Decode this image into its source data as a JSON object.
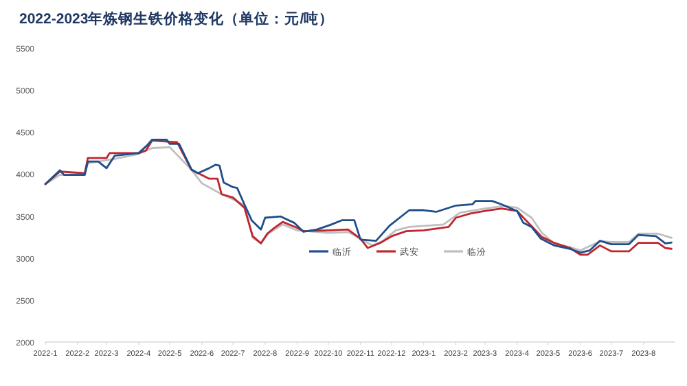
{
  "chart_data": {
    "type": "line",
    "title": "2022-2023年炼钢生铁价格变化（单位：元/吨）",
    "xlim": [
      "2022-01-01",
      "2023-08-31"
    ],
    "xticks": [
      {
        "value": "2022-01-01",
        "label": "2022-1"
      },
      {
        "value": "2022-02-01",
        "label": "2022-2"
      },
      {
        "value": "2022-03-01",
        "label": "2022-3"
      },
      {
        "value": "2022-04-01",
        "label": "2022-4"
      },
      {
        "value": "2022-05-01",
        "label": "2022-5"
      },
      {
        "value": "2022-06-01",
        "label": "2022-6"
      },
      {
        "value": "2022-07-01",
        "label": "2022-7"
      },
      {
        "value": "2022-08-01",
        "label": "2022-8"
      },
      {
        "value": "2022-09-01",
        "label": "2022-9"
      },
      {
        "value": "2022-10-01",
        "label": "2022-10"
      },
      {
        "value": "2022-11-01",
        "label": "2022-11"
      },
      {
        "value": "2022-12-01",
        "label": "2022-12"
      },
      {
        "value": "2023-01-01",
        "label": "2023-1"
      },
      {
        "value": "2023-02-01",
        "label": "2023-2"
      },
      {
        "value": "2023-03-01",
        "label": "2023-3"
      },
      {
        "value": "2023-04-01",
        "label": "2023-4"
      },
      {
        "value": "2023-05-01",
        "label": "2023-5"
      },
      {
        "value": "2023-06-01",
        "label": "2023-6"
      },
      {
        "value": "2023-07-01",
        "label": "2023-7"
      },
      {
        "value": "2023-08-01",
        "label": "2023-8"
      }
    ],
    "ylim": [
      2000,
      5500
    ],
    "yticks": [
      2000,
      2500,
      3000,
      3500,
      4000,
      4500,
      5000,
      5500
    ],
    "legend": "bottom",
    "grid": false,
    "marker": "none",
    "line_style": "solid",
    "series": [
      {
        "name": "临沂",
        "color": "#1f4e8c",
        "x": [
          "2022-01-01",
          "2022-01-15",
          "2022-01-19",
          "2022-02-08",
          "2022-02-11",
          "2022-02-21",
          "2022-03-01",
          "2022-03-09",
          "2022-04-01",
          "2022-04-09",
          "2022-04-14",
          "2022-04-28",
          "2022-05-01",
          "2022-05-10",
          "2022-05-22",
          "2022-05-28",
          "2022-06-08",
          "2022-06-14",
          "2022-06-18",
          "2022-06-22",
          "2022-07-01",
          "2022-07-05",
          "2022-07-12",
          "2022-07-19",
          "2022-07-28",
          "2022-08-01",
          "2022-08-16",
          "2022-08-29",
          "2022-09-07",
          "2022-09-20",
          "2022-10-03",
          "2022-10-14",
          "2022-10-26",
          "2022-11-01",
          "2022-11-16",
          "2022-11-29",
          "2022-12-18",
          "2023-01-01",
          "2023-01-13",
          "2023-02-01",
          "2023-02-17",
          "2023-02-20",
          "2023-03-08",
          "2023-03-17",
          "2023-04-01",
          "2023-04-07",
          "2023-04-15",
          "2023-04-24",
          "2023-05-07",
          "2023-05-22",
          "2023-06-01",
          "2023-06-10",
          "2023-06-20",
          "2023-07-01",
          "2023-07-18",
          "2023-07-27",
          "2023-08-13",
          "2023-08-22",
          "2023-08-28"
        ],
        "values": [
          3880,
          4045,
          3990,
          3990,
          4150,
          4150,
          4070,
          4220,
          4250,
          4340,
          4410,
          4410,
          4360,
          4360,
          4055,
          4010,
          4070,
          4110,
          4100,
          3900,
          3845,
          3835,
          3640,
          3450,
          3340,
          3480,
          3495,
          3420,
          3313,
          3340,
          3395,
          3450,
          3450,
          3220,
          3205,
          3385,
          3570,
          3570,
          3550,
          3625,
          3640,
          3680,
          3680,
          3640,
          3560,
          3420,
          3370,
          3230,
          3150,
          3110,
          3065,
          3090,
          3205,
          3165,
          3165,
          3275,
          3260,
          3175,
          3185
        ]
      },
      {
        "name": "武安",
        "color": "#c0262d",
        "x": [
          "2022-01-01",
          "2022-01-15",
          "2022-02-08",
          "2022-02-11",
          "2022-03-01",
          "2022-03-04",
          "2022-04-01",
          "2022-04-08",
          "2022-04-14",
          "2022-05-01",
          "2022-05-08",
          "2022-05-22",
          "2022-06-08",
          "2022-06-16",
          "2022-06-20",
          "2022-07-01",
          "2022-07-12",
          "2022-07-20",
          "2022-07-28",
          "2022-08-03",
          "2022-08-10",
          "2022-08-18",
          "2022-09-01",
          "2022-09-07",
          "2022-10-01",
          "2022-10-20",
          "2022-11-01",
          "2022-11-08",
          "2022-11-20",
          "2022-12-01",
          "2022-12-15",
          "2023-01-01",
          "2023-01-25",
          "2023-02-01",
          "2023-02-15",
          "2023-03-01",
          "2023-03-17",
          "2023-04-01",
          "2023-04-15",
          "2023-04-25",
          "2023-05-07",
          "2023-05-22",
          "2023-06-01",
          "2023-06-08",
          "2023-06-20",
          "2023-07-01",
          "2023-07-18",
          "2023-07-27",
          "2023-08-15",
          "2023-08-22",
          "2023-08-28"
        ],
        "values": [
          3880,
          4030,
          4010,
          4190,
          4190,
          4250,
          4250,
          4280,
          4400,
          4385,
          4380,
          4050,
          3945,
          3945,
          3760,
          3720,
          3600,
          3260,
          3175,
          3290,
          3360,
          3430,
          3360,
          3320,
          3330,
          3340,
          3230,
          3120,
          3180,
          3260,
          3320,
          3330,
          3370,
          3480,
          3530,
          3560,
          3590,
          3560,
          3380,
          3250,
          3180,
          3120,
          3040,
          3040,
          3150,
          3080,
          3080,
          3180,
          3180,
          3120,
          3110
        ]
      },
      {
        "name": "临汾",
        "color": "#bfbfbf",
        "x": [
          "2022-01-01",
          "2022-01-15",
          "2022-02-08",
          "2022-02-11",
          "2022-03-09",
          "2022-04-01",
          "2022-04-14",
          "2022-05-01",
          "2022-05-22",
          "2022-06-01",
          "2022-06-20",
          "2022-07-01",
          "2022-07-12",
          "2022-07-20",
          "2022-07-28",
          "2022-08-05",
          "2022-08-18",
          "2022-09-01",
          "2022-10-01",
          "2022-10-20",
          "2022-11-01",
          "2022-11-12",
          "2022-11-22",
          "2022-12-05",
          "2022-12-18",
          "2023-01-20",
          "2023-02-05",
          "2023-03-01",
          "2023-03-20",
          "2023-04-01",
          "2023-04-15",
          "2023-04-25",
          "2023-05-07",
          "2023-05-22",
          "2023-06-01",
          "2023-06-20",
          "2023-07-01",
          "2023-07-18",
          "2023-07-27",
          "2023-08-15",
          "2023-08-28"
        ],
        "values": [
          3880,
          3990,
          4000,
          4130,
          4180,
          4240,
          4310,
          4320,
          4050,
          3890,
          3760,
          3700,
          3630,
          3240,
          3180,
          3300,
          3400,
          3330,
          3300,
          3310,
          3230,
          3150,
          3200,
          3330,
          3370,
          3400,
          3540,
          3590,
          3620,
          3600,
          3480,
          3300,
          3170,
          3130,
          3090,
          3200,
          3190,
          3190,
          3290,
          3290,
          3240
        ]
      }
    ]
  }
}
